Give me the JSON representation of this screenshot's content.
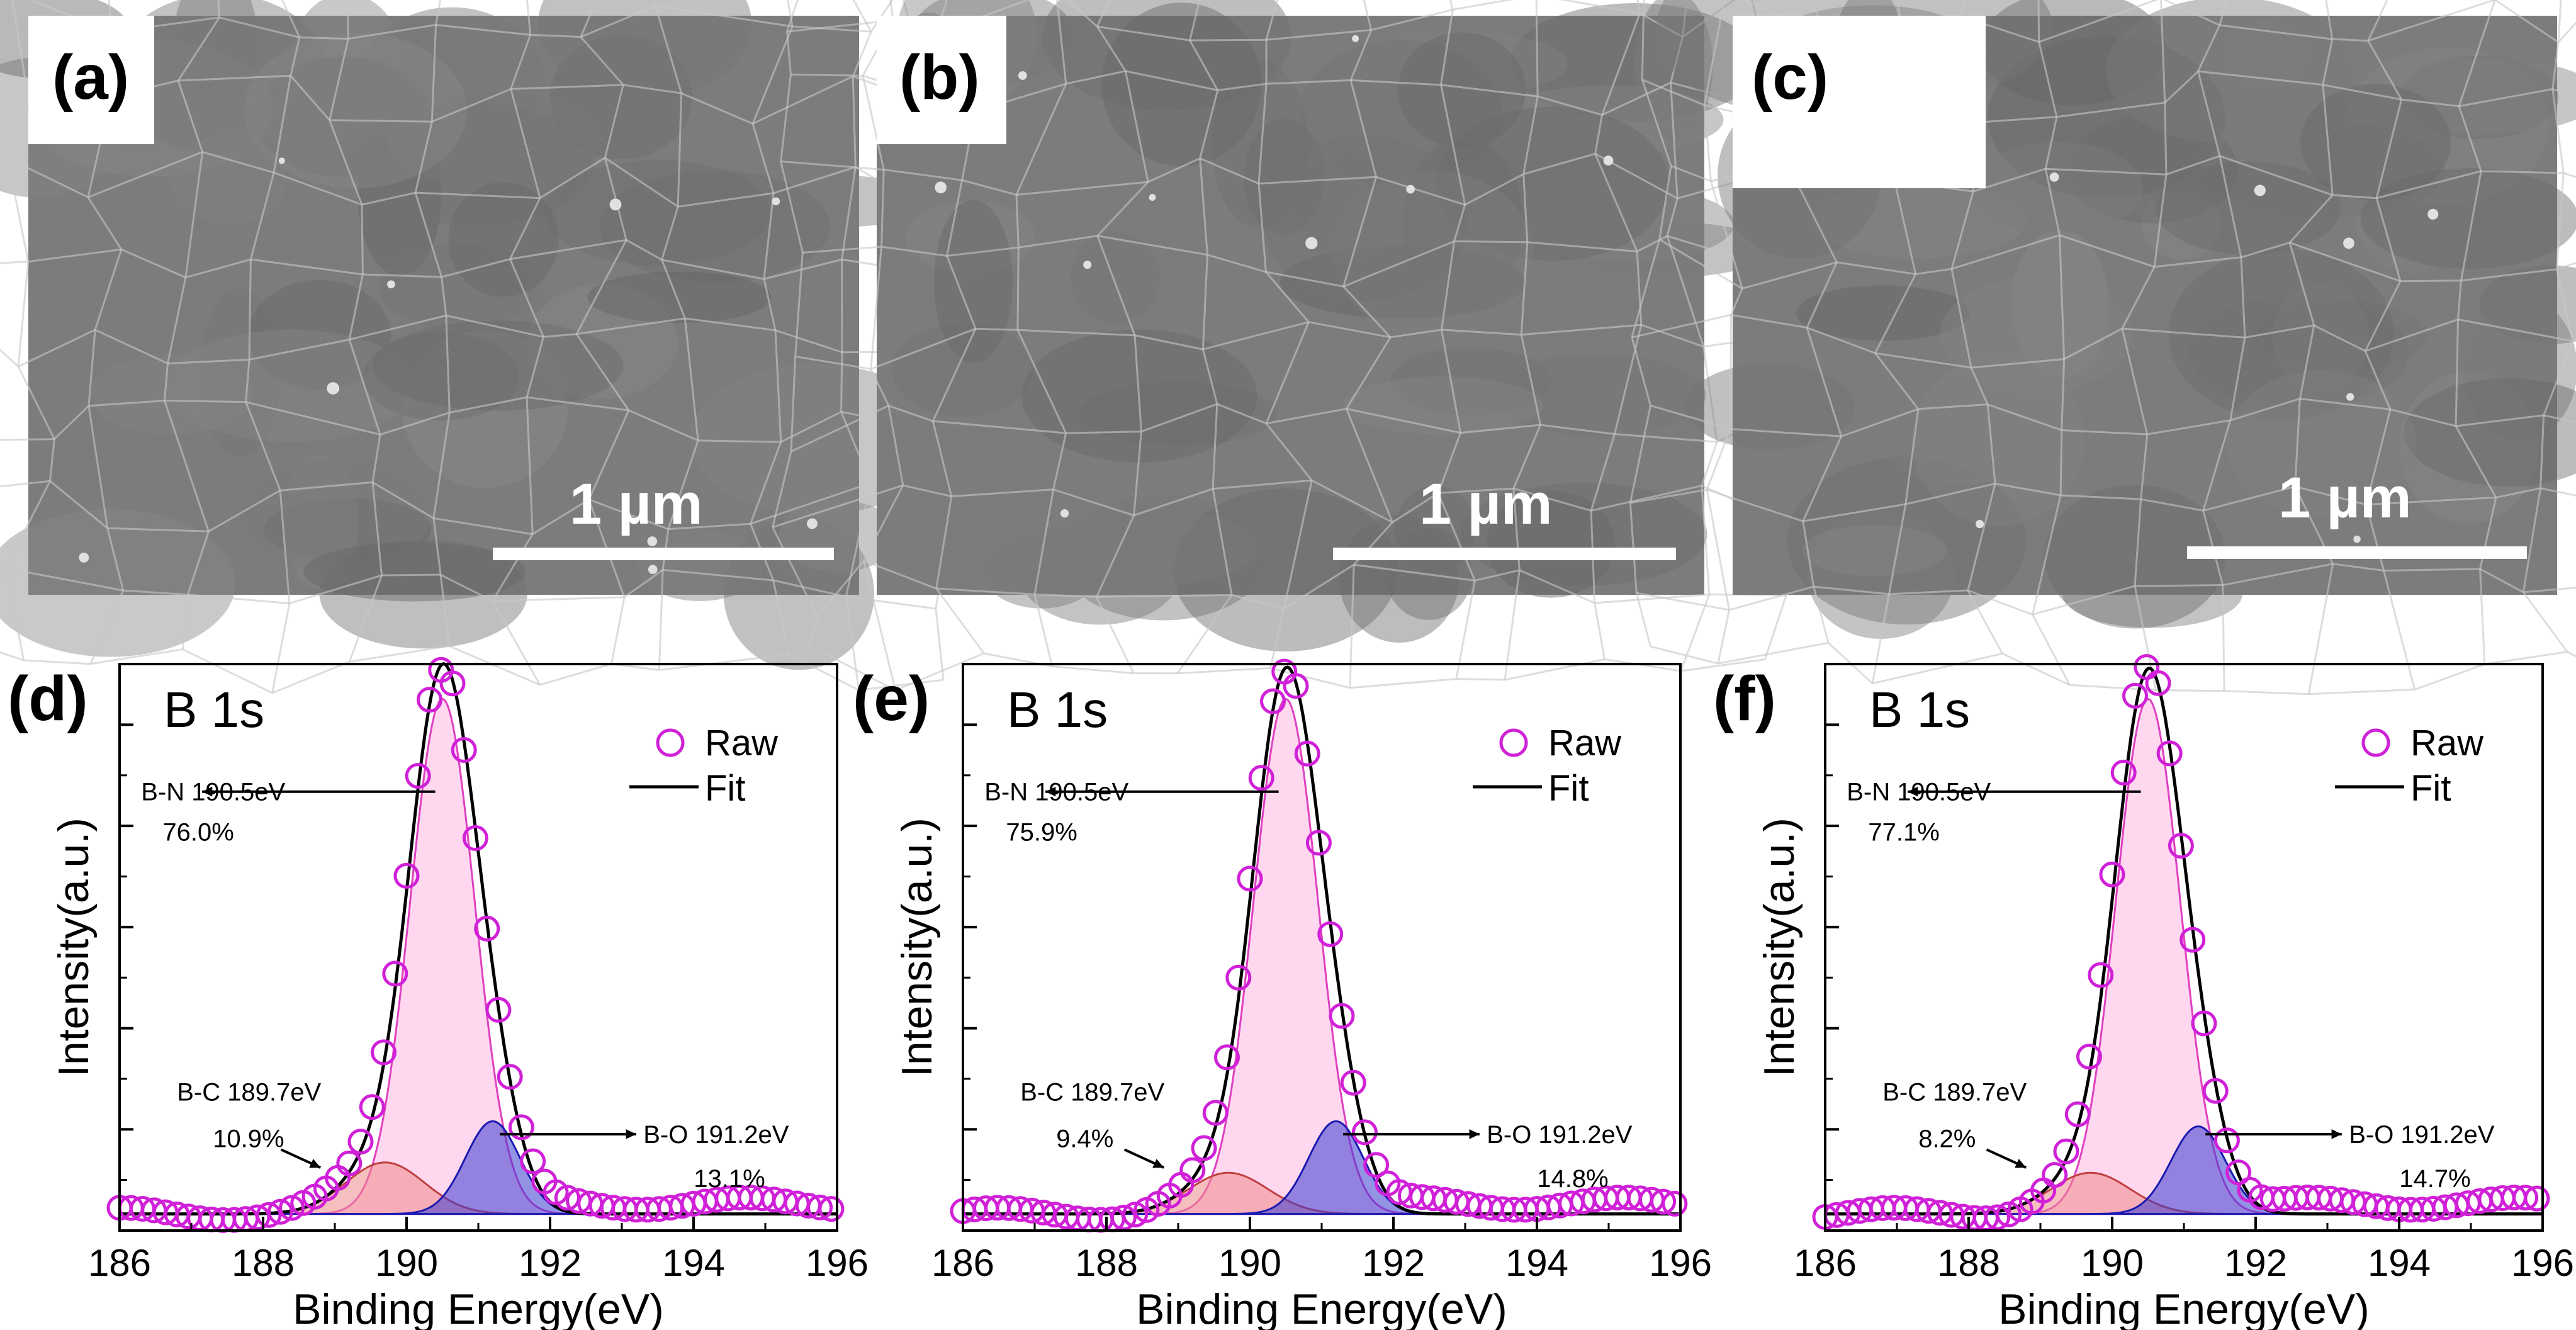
{
  "sem_panels": [
    {
      "label": "(a)",
      "scale": "1 µm"
    },
    {
      "label": "(b)",
      "scale": "1 µm"
    },
    {
      "label": "(c)",
      "scale": "1 µm"
    }
  ],
  "chart_data": [
    {
      "type": "line",
      "panel_label": "(d)",
      "title": "B 1s",
      "xlabel": "Binding Energy(eV)",
      "ylabel": "Intensity(a.u.)",
      "xlim": [
        186,
        196
      ],
      "ylim": [
        0,
        1.1
      ],
      "x_ticks": [
        "186",
        "188",
        "190",
        "192",
        "194",
        "196"
      ],
      "legend": [
        {
          "name": "Raw",
          "marker": "circle"
        },
        {
          "name": "Fit",
          "marker": "line"
        }
      ],
      "legend_position": "top-right",
      "components": [
        {
          "name": "B-N",
          "center": 190.5,
          "height": 1.0,
          "color": "#ffb8e2",
          "annotation_line1": "B-N 190.5eV",
          "annotation_line2": "76.0%"
        },
        {
          "name": "B-C",
          "center": 189.7,
          "height": 0.1,
          "color": "#ee8a8a",
          "annotation_line1": "B-C 189.7eV",
          "annotation_line2": "10.9%"
        },
        {
          "name": "B-O",
          "center": 191.2,
          "height": 0.18,
          "color": "#3b3bd2",
          "annotation_line1": "B-O 191.2eV",
          "annotation_line2": "13.1%"
        }
      ]
    },
    {
      "type": "line",
      "panel_label": "(e)",
      "title": "B 1s",
      "xlabel": "Binding Energy(eV)",
      "ylabel": "Intensity(a.u.)",
      "xlim": [
        186,
        196
      ],
      "ylim": [
        0,
        1.1
      ],
      "x_ticks": [
        "186",
        "188",
        "190",
        "192",
        "194",
        "196"
      ],
      "legend": [
        {
          "name": "Raw",
          "marker": "circle"
        },
        {
          "name": "Fit",
          "marker": "line"
        }
      ],
      "legend_position": "top-right",
      "components": [
        {
          "name": "B-N",
          "center": 190.5,
          "height": 1.0,
          "color": "#ffb8e2",
          "annotation_line1": "B-N 190.5eV",
          "annotation_line2": "75.9%"
        },
        {
          "name": "B-C",
          "center": 189.7,
          "height": 0.08,
          "color": "#ee8a8a",
          "annotation_line1": "B-C 189.7eV",
          "annotation_line2": "9.4%"
        },
        {
          "name": "B-O",
          "center": 191.2,
          "height": 0.18,
          "color": "#3b3bd2",
          "annotation_line1": "B-O 191.2eV",
          "annotation_line2": "14.8%"
        }
      ]
    },
    {
      "type": "line",
      "panel_label": "(f)",
      "title": "B 1s",
      "xlabel": "Binding Energy(eV)",
      "ylabel": "Intensity(a.u.)",
      "xlim": [
        186,
        196
      ],
      "ylim": [
        0,
        1.1
      ],
      "x_ticks": [
        "186",
        "188",
        "190",
        "192",
        "194",
        "196"
      ],
      "legend": [
        {
          "name": "Raw",
          "marker": "circle"
        },
        {
          "name": "Fit",
          "marker": "line"
        }
      ],
      "legend_position": "top-right",
      "components": [
        {
          "name": "B-N",
          "center": 190.5,
          "height": 1.0,
          "color": "#ffb8e2",
          "annotation_line1": "B-N 190.5eV",
          "annotation_line2": "77.1%"
        },
        {
          "name": "B-C",
          "center": 189.7,
          "height": 0.08,
          "color": "#ee8a8a",
          "annotation_line1": "B-C 189.7eV",
          "annotation_line2": "8.2%"
        },
        {
          "name": "B-O",
          "center": 191.2,
          "height": 0.17,
          "color": "#3b3bd2",
          "annotation_line1": "B-O 191.2eV",
          "annotation_line2": "14.7%"
        }
      ]
    }
  ]
}
